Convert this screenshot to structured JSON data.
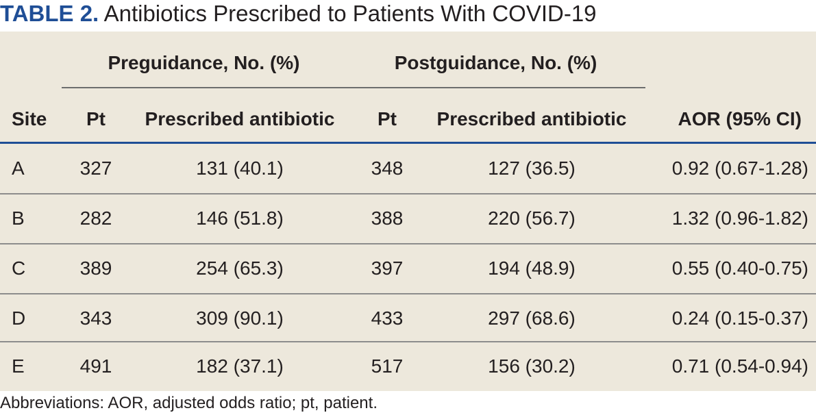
{
  "title": {
    "label": "TABLE 2.",
    "text": "Antibiotics Prescribed to Patients With COVID-19"
  },
  "table": {
    "group_headers": {
      "pre": "Preguidance, No. (%)",
      "post": "Postguidance, No. (%)"
    },
    "columns": {
      "site": "Site",
      "pt1": "Pt",
      "pre": "Prescribed antibiotic",
      "pt2": "Pt",
      "post": "Prescribed antibiotic",
      "aor": "AOR (95% CI)"
    },
    "rows": [
      {
        "site": "A",
        "pt1": "327",
        "pre": "131 (40.1)",
        "pt2": "348",
        "post": "127 (36.5)",
        "aor": "0.92 (0.67-1.28)"
      },
      {
        "site": "B",
        "pt1": "282",
        "pre": "146 (51.8)",
        "pt2": "388",
        "post": "220 (56.7)",
        "aor": "1.32 (0.96-1.82)"
      },
      {
        "site": "C",
        "pt1": "389",
        "pre": "254 (65.3)",
        "pt2": "397",
        "post": "194 (48.9)",
        "aor": "0.55 (0.40-0.75)"
      },
      {
        "site": "D",
        "pt1": "343",
        "pre": "309 (90.1)",
        "pt2": "433",
        "post": "297 (68.6)",
        "aor": "0.24 (0.15-0.37)"
      },
      {
        "site": "E",
        "pt1": "491",
        "pre": "182 (37.1)",
        "pt2": "517",
        "post": "156 (30.2)",
        "aor": "0.71 (0.54-0.94)"
      }
    ]
  },
  "footnote": "Abbreviations: AOR, adjusted odds ratio; pt, patient.",
  "colors": {
    "title_label": "#1f4e96",
    "table_background": "#ede8dc",
    "header_rule": "#1f4e96"
  }
}
